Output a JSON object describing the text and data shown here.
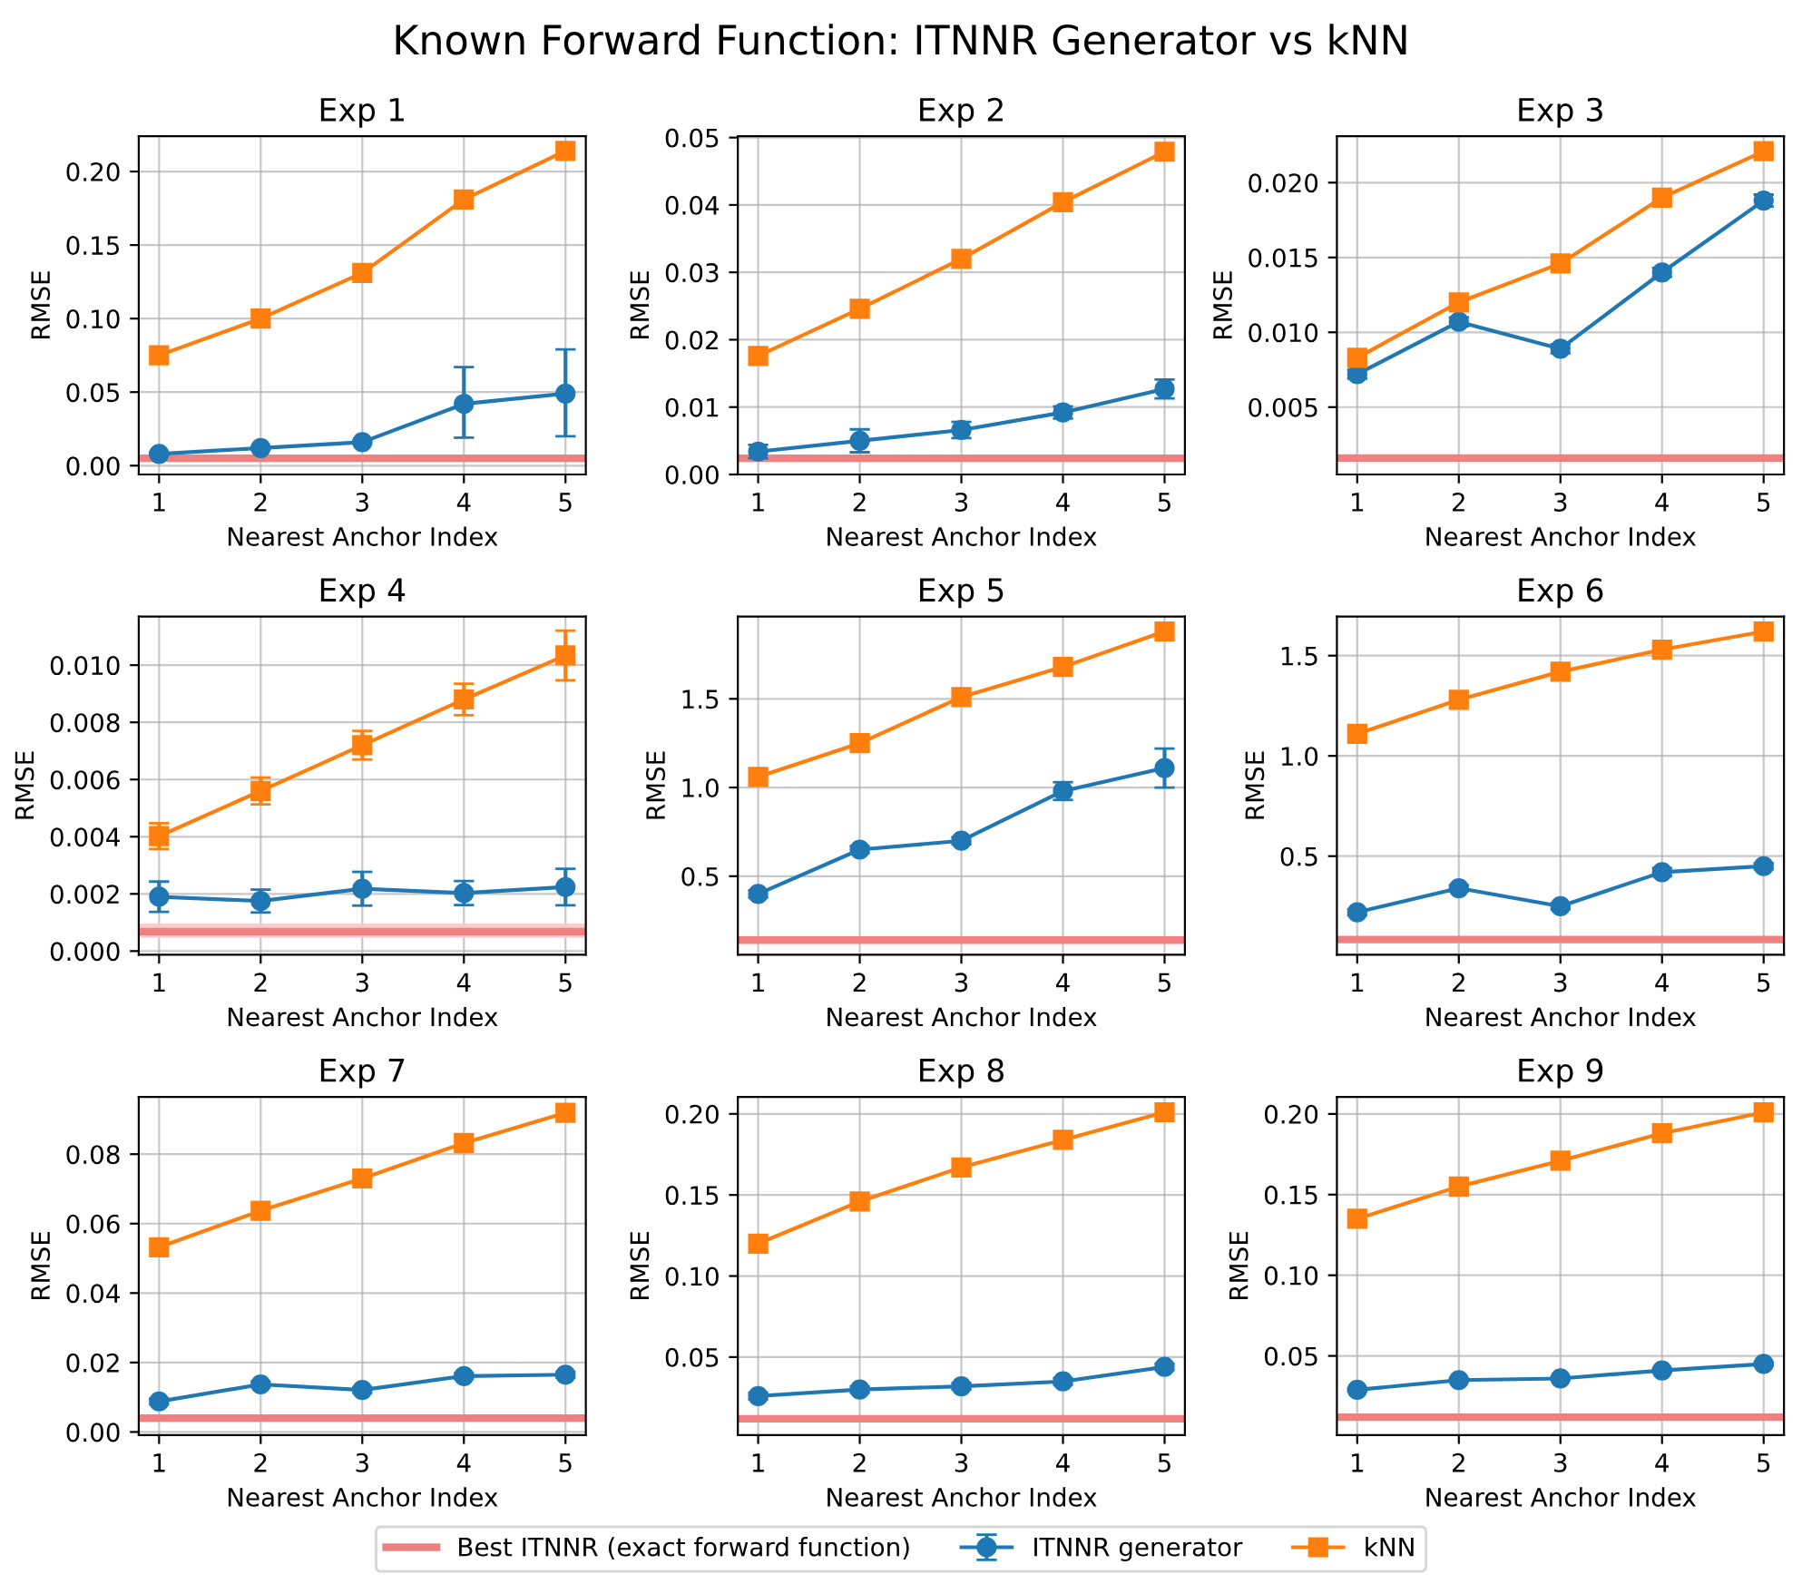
{
  "chart_data": [
    {
      "type": "line",
      "title": "Exp 1",
      "annotations": [
        "Known Forward Function: ITNNR Generator vs kNN"
      ],
      "xlabel": "Nearest Anchor Index",
      "ylabel": "RMSE",
      "x": [
        1,
        2,
        3,
        4,
        5
      ],
      "xlim": [
        0.8,
        5.2
      ],
      "xticks": [
        1,
        2,
        3,
        4,
        5
      ],
      "ylim": [
        -0.006,
        0.224
      ],
      "yticks": [
        {
          "value": 0,
          "label": "0.00"
        },
        0.05,
        {
          "value": 0.1,
          "label": "0.10"
        },
        0.15,
        {
          "value": 0.2,
          "label": "0.20"
        }
      ],
      "grid": true,
      "legend": "bottom",
      "series": [
        {
          "name": "ITNNR generator",
          "color": "#1f77b4",
          "marker": "circle",
          "values": [
            0.008,
            0.012,
            0.016,
            0.042,
            0.049
          ],
          "errors": [
            0.001,
            0.001,
            0.001,
            [
              0.019,
              0.067
            ],
            [
              0.02,
              0.079
            ]
          ]
        },
        {
          "name": "kNN",
          "color": "#ff7f0e",
          "marker": "square",
          "values": [
            0.075,
            0.1,
            0.131,
            0.181,
            0.214
          ]
        }
      ],
      "ref_lines": [
        {
          "axis": "y",
          "value": 0.005,
          "label": "Best ITNNR (exact forward function)",
          "color": "#f08080"
        }
      ]
    },
    {
      "type": "line",
      "title": "Exp 2",
      "xlabel": "Nearest Anchor Index",
      "ylabel": "RMSE",
      "x": [
        1,
        2,
        3,
        4,
        5
      ],
      "xlim": [
        0.8,
        5.2
      ],
      "xticks": [
        1,
        2,
        3,
        4,
        5
      ],
      "ylim": [
        0,
        0.0502
      ],
      "yticks": [
        {
          "value": 0,
          "label": "0.00"
        },
        0.01,
        0.02,
        0.03,
        0.04,
        0.05
      ],
      "grid": true,
      "series": [
        {
          "color": "#1f77b4",
          "marker": "circle",
          "values": [
            0.0034,
            0.005,
            0.0066,
            0.0092,
            0.0127
          ],
          "errors": [
            0.001,
            0.0017,
            0.0012,
            0.0009,
            0.0014
          ]
        },
        {
          "color": "#ff7f0e",
          "marker": "square",
          "values": [
            0.0176,
            0.0246,
            0.032,
            0.0404,
            0.0479
          ]
        }
      ],
      "ref_lines": [
        {
          "axis": "y",
          "value": 0.0024,
          "color": "#f08080"
        }
      ]
    },
    {
      "type": "line",
      "title": "Exp 3",
      "xlabel": "Nearest Anchor Index",
      "ylabel": "RMSE",
      "x": [
        1,
        2,
        3,
        4,
        5
      ],
      "xlim": [
        0.8,
        5.2
      ],
      "xticks": [
        1,
        2,
        3,
        4,
        5
      ],
      "ylim": [
        0.0005,
        0.0231
      ],
      "yticks": [
        0.005,
        {
          "value": 0.01,
          "label": "0.010"
        },
        0.015,
        {
          "value": 0.02,
          "label": "0.020"
        }
      ],
      "grid": true,
      "series": [
        {
          "color": "#1f77b4",
          "marker": "circle",
          "values": [
            0.0072,
            0.0107,
            0.0089,
            0.014,
            0.0188
          ],
          "errors": [
            0.0003,
            0.0003,
            0.0003,
            0.0003,
            0.0004
          ]
        },
        {
          "color": "#ff7f0e",
          "marker": "square",
          "values": [
            0.0083,
            0.012,
            0.0146,
            0.019,
            0.0221
          ]
        }
      ],
      "ref_lines": [
        {
          "axis": "y",
          "value": 0.0016,
          "color": "#f08080"
        }
      ]
    },
    {
      "type": "line",
      "title": "Exp 4",
      "xlabel": "Nearest Anchor Index",
      "ylabel": "RMSE",
      "x": [
        1,
        2,
        3,
        4,
        5
      ],
      "xlim": [
        0.8,
        5.2
      ],
      "xticks": [
        1,
        2,
        3,
        4,
        5
      ],
      "ylim": [
        -0.00013,
        0.0117
      ],
      "yticks": [
        {
          "value": 0,
          "label": "0.000"
        },
        0.002,
        0.004,
        0.006,
        0.008,
        {
          "value": 0.01,
          "label": "0.010"
        }
      ],
      "grid": true,
      "series": [
        {
          "color": "#1f77b4",
          "marker": "circle",
          "values": [
            0.0019,
            0.00175,
            0.00218,
            0.00203,
            0.00224
          ],
          "errors": [
            0.00053,
            0.0004,
            0.00059,
            0.00042,
            0.00064
          ]
        },
        {
          "color": "#ff7f0e",
          "marker": "square",
          "values": [
            0.00402,
            0.0056,
            0.0072,
            0.0088,
            0.01034
          ],
          "errors": [
            0.00045,
            0.00047,
            0.0005,
            0.00055,
            0.00087
          ]
        }
      ],
      "ref_lines": [
        {
          "axis": "y",
          "value": 0.00068,
          "color": "#f08080"
        }
      ],
      "bands": [
        {
          "axis": "y",
          "from": 0.00047,
          "to": 0.00096,
          "color": "#f9cccc"
        }
      ]
    },
    {
      "type": "line",
      "title": "Exp 5",
      "xlabel": "Nearest Anchor Index",
      "ylabel": "RMSE",
      "x": [
        1,
        2,
        3,
        4,
        5
      ],
      "xlim": [
        0.8,
        5.2
      ],
      "xticks": [
        1,
        2,
        3,
        4,
        5
      ],
      "ylim": [
        0.057,
        1.964
      ],
      "yticks": [
        0.5,
        {
          "value": 1,
          "label": "1.0"
        },
        1.5
      ],
      "grid": true,
      "series": [
        {
          "color": "#1f77b4",
          "marker": "circle",
          "values": [
            0.4,
            0.65,
            0.7,
            0.98,
            1.11
          ],
          "errors": [
            0.02,
            0.02,
            0.02,
            0.05,
            0.11
          ]
        },
        {
          "color": "#ff7f0e",
          "marker": "square",
          "values": [
            1.06,
            1.25,
            1.51,
            1.68,
            1.88
          ]
        }
      ],
      "ref_lines": [
        {
          "axis": "y",
          "value": 0.14,
          "color": "#f08080"
        }
      ]
    },
    {
      "type": "line",
      "title": "Exp 6",
      "xlabel": "Nearest Anchor Index",
      "ylabel": "RMSE",
      "x": [
        1,
        2,
        3,
        4,
        5
      ],
      "xlim": [
        0.8,
        5.2
      ],
      "xticks": [
        1,
        2,
        3,
        4,
        5
      ],
      "ylim": [
        0.008,
        1.695
      ],
      "yticks": [
        0.5,
        {
          "value": 1,
          "label": "1.0"
        },
        1.5
      ],
      "grid": true,
      "series": [
        {
          "color": "#1f77b4",
          "marker": "circle",
          "values": [
            0.22,
            0.34,
            0.25,
            0.42,
            0.45
          ],
          "errors": [
            0.015,
            0.015,
            0.015,
            0.02,
            0.015
          ]
        },
        {
          "color": "#ff7f0e",
          "marker": "square",
          "values": [
            1.11,
            1.28,
            1.42,
            1.53,
            1.62
          ]
        }
      ],
      "ref_lines": [
        {
          "axis": "y",
          "value": 0.084,
          "color": "#f08080"
        }
      ]
    },
    {
      "type": "line",
      "title": "Exp 7",
      "xlabel": "Nearest Anchor Index",
      "ylabel": "RMSE",
      "x": [
        1,
        2,
        3,
        4,
        5
      ],
      "xlim": [
        0.8,
        5.2
      ],
      "xticks": [
        1,
        2,
        3,
        4,
        5
      ],
      "ylim": [
        -0.0009,
        0.0965
      ],
      "yticks": [
        {
          "value": 0,
          "label": "0.00"
        },
        0.02,
        0.04,
        0.06,
        0.08
      ],
      "grid": true,
      "series": [
        {
          "color": "#1f77b4",
          "marker": "circle",
          "values": [
            0.0088,
            0.0137,
            0.0121,
            0.0161,
            0.0165
          ],
          "errors": [
            0.0008,
            0.0008,
            0.0008,
            0.0008,
            0.0008
          ]
        },
        {
          "color": "#ff7f0e",
          "marker": "square",
          "values": [
            0.0532,
            0.0637,
            0.073,
            0.0832,
            0.0919
          ]
        }
      ],
      "ref_lines": [
        {
          "axis": "y",
          "value": 0.004,
          "color": "#f08080"
        }
      ]
    },
    {
      "type": "line",
      "title": "Exp 8",
      "xlabel": "Nearest Anchor Index",
      "ylabel": "RMSE",
      "x": [
        1,
        2,
        3,
        4,
        5
      ],
      "xlim": [
        0.8,
        5.2
      ],
      "xticks": [
        1,
        2,
        3,
        4,
        5
      ],
      "ylim": [
        0.0019,
        0.2105
      ],
      "yticks": [
        0.05,
        {
          "value": 0.1,
          "label": "0.10"
        },
        0.15,
        {
          "value": 0.2,
          "label": "0.20"
        }
      ],
      "grid": true,
      "series": [
        {
          "color": "#1f77b4",
          "marker": "circle",
          "values": [
            0.026,
            0.03,
            0.032,
            0.035,
            0.044
          ],
          "errors": [
            0.002,
            0.002,
            0.002,
            0.002,
            0.002
          ]
        },
        {
          "color": "#ff7f0e",
          "marker": "square",
          "values": [
            0.12,
            0.146,
            0.167,
            0.184,
            0.201
          ]
        }
      ],
      "ref_lines": [
        {
          "axis": "y",
          "value": 0.012,
          "color": "#f08080"
        }
      ]
    },
    {
      "type": "line",
      "title": "Exp 9",
      "xlabel": "Nearest Anchor Index",
      "ylabel": "RMSE",
      "x": [
        1,
        2,
        3,
        4,
        5
      ],
      "xlim": [
        0.8,
        5.2
      ],
      "xticks": [
        1,
        2,
        3,
        4,
        5
      ],
      "ylim": [
        0.0009,
        0.2106
      ],
      "yticks": [
        0.05,
        {
          "value": 0.1,
          "label": "0.10"
        },
        0.15,
        {
          "value": 0.2,
          "label": "0.20"
        }
      ],
      "grid": true,
      "series": [
        {
          "color": "#1f77b4",
          "marker": "circle",
          "values": [
            0.029,
            0.035,
            0.036,
            0.041,
            0.045
          ],
          "errors": [
            0.001,
            0.001,
            0.001,
            0.001,
            0.001
          ]
        },
        {
          "color": "#ff7f0e",
          "marker": "square",
          "values": [
            0.135,
            0.155,
            0.171,
            0.188,
            0.201
          ]
        }
      ],
      "ref_lines": [
        {
          "axis": "y",
          "value": 0.012,
          "color": "#f08080"
        }
      ]
    }
  ]
}
